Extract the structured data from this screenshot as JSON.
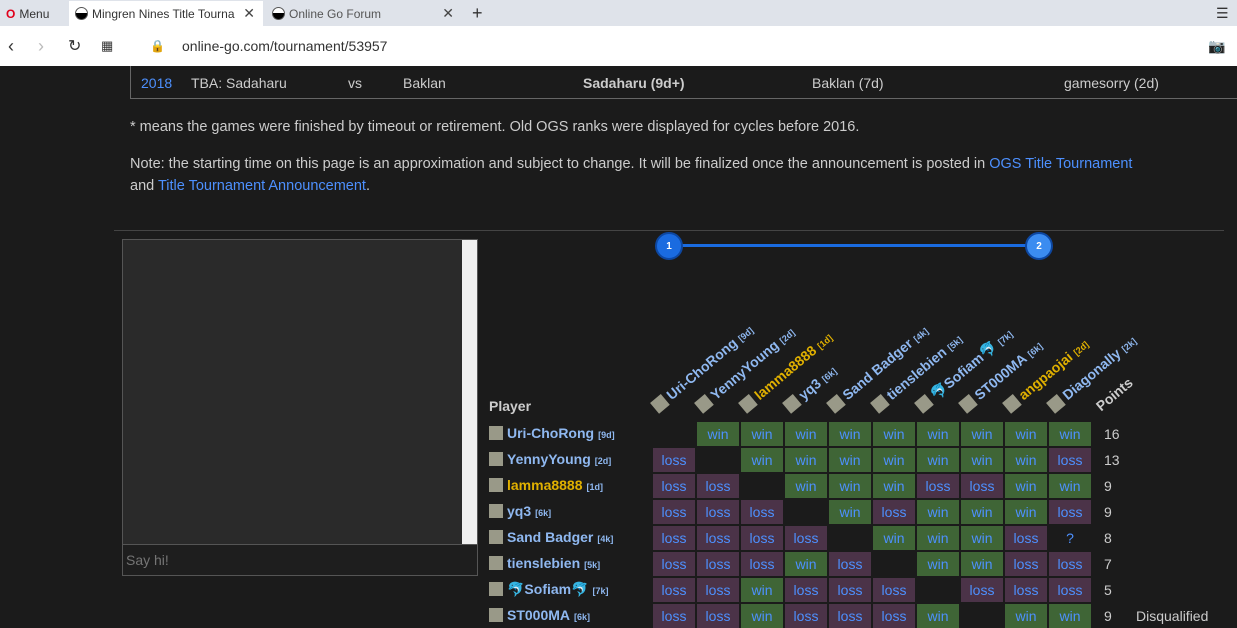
{
  "browser": {
    "menu": "Menu",
    "tabs": [
      {
        "title": "Mingren Nines Title Tourna"
      },
      {
        "title": "Online Go Forum"
      }
    ],
    "url": "online-go.com/tournament/53957"
  },
  "history_row": {
    "year": "2018",
    "match": "TBA: Sadaharu",
    "vs": "vs",
    "opponent": "Baklan",
    "winner": "Sadaharu (9d+)",
    "runner_up": "Baklan (7d)",
    "organizer": "gamesorry (2d)"
  },
  "notes": {
    "timeout": "* means the games were finished by timeout or retirement. Old OGS ranks were displayed for cycles before 2016.",
    "start_prefix": "Note: the starting time on this page is an approximation and subject to change. It will be finalized once the announcement is posted in ",
    "link1": "OGS Title Tournament",
    "and": "and ",
    "link2": "Title Tournament Announcement",
    "end": "."
  },
  "chat": {
    "placeholder": "Say hi!"
  },
  "rounds": [
    "1",
    "2"
  ],
  "table": {
    "player_header": "Player",
    "points_header": "Points",
    "players": [
      {
        "name": "Uri-ChoRong",
        "rank": "[9d]",
        "color": "#8fb8f0",
        "points": "16",
        "results": [
          "",
          "win",
          "win",
          "win",
          "win",
          "win",
          "win",
          "win",
          "win",
          "win"
        ]
      },
      {
        "name": "YennyYoung",
        "rank": "[2d]",
        "color": "#8fb8f0",
        "points": "13",
        "results": [
          "loss",
          "",
          "win",
          "win",
          "win",
          "win",
          "win",
          "win",
          "win",
          "loss"
        ]
      },
      {
        "name": "lamma8888",
        "rank": "[1d]",
        "color": "#e0b000",
        "points": "9",
        "results": [
          "loss",
          "loss",
          "",
          "win",
          "win",
          "win",
          "loss",
          "loss",
          "win",
          "win"
        ]
      },
      {
        "name": "yq3",
        "rank": "[6k]",
        "color": "#8fb8f0",
        "points": "9",
        "results": [
          "loss",
          "loss",
          "loss",
          "",
          "win",
          "loss",
          "win",
          "win",
          "win",
          "loss"
        ]
      },
      {
        "name": "Sand Badger",
        "rank": "[4k]",
        "color": "#8fb8f0",
        "points": "8",
        "results": [
          "loss",
          "loss",
          "loss",
          "loss",
          "",
          "win",
          "win",
          "win",
          "loss",
          "?"
        ]
      },
      {
        "name": "tienslebien",
        "rank": "[5k]",
        "color": "#8fb8f0",
        "points": "7",
        "results": [
          "loss",
          "loss",
          "loss",
          "win",
          "loss",
          "",
          "win",
          "win",
          "loss",
          "loss"
        ]
      },
      {
        "name": "🐬Sofiam🐬",
        "rank": "[7k]",
        "color": "#8fb8f0",
        "points": "5",
        "results": [
          "loss",
          "loss",
          "win",
          "loss",
          "loss",
          "loss",
          "",
          "loss",
          "loss",
          "loss"
        ]
      },
      {
        "name": "ST000MA",
        "rank": "[6k]",
        "color": "#8fb8f0",
        "points": "9",
        "status": "Disqualified",
        "results": [
          "loss",
          "loss",
          "win",
          "loss",
          "loss",
          "loss",
          "win",
          "",
          "win",
          "win"
        ]
      }
    ],
    "columns": [
      {
        "name": "Uri-ChoRong",
        "rank": "[9d]",
        "color": "#8fb8f0"
      },
      {
        "name": "YennyYoung",
        "rank": "[2d]",
        "color": "#8fb8f0"
      },
      {
        "name": "lamma8888",
        "rank": "[1d]",
        "color": "#e0b000"
      },
      {
        "name": "yq3",
        "rank": "[6k]",
        "color": "#8fb8f0"
      },
      {
        "name": "Sand Badger",
        "rank": "[4k]",
        "color": "#8fb8f0"
      },
      {
        "name": "tienslebien",
        "rank": "[5k]",
        "color": "#8fb8f0"
      },
      {
        "name": "🐬Sofiam🐬",
        "rank": "[7k]",
        "color": "#8fb8f0"
      },
      {
        "name": "ST000MA",
        "rank": "[6k]",
        "color": "#8fb8f0"
      },
      {
        "name": "angpaojai",
        "rank": "[2d]",
        "color": "#e0b000"
      },
      {
        "name": "Diagonally",
        "rank": "[2k]",
        "color": "#8fb8f0"
      }
    ]
  }
}
